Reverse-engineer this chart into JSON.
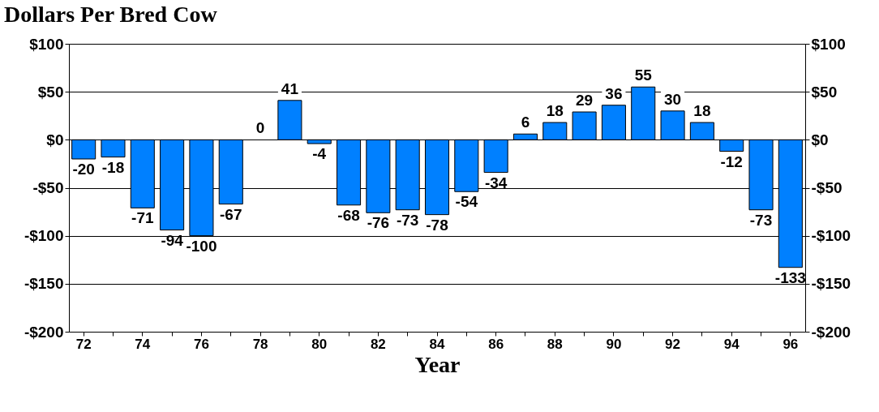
{
  "chart_data": {
    "type": "bar",
    "title": "Dollars Per Bred Cow",
    "xlabel": "Year",
    "categories": [
      "72",
      null,
      "74",
      null,
      "76",
      null,
      "78",
      null,
      "80",
      null,
      "82",
      null,
      "84",
      null,
      "86",
      null,
      "88",
      null,
      "90",
      null,
      "92",
      null,
      "94",
      null,
      "96"
    ],
    "values": [
      -20,
      -18,
      -71,
      -94,
      -100,
      -67,
      0,
      41,
      -4,
      -68,
      -76,
      -73,
      -78,
      -54,
      -34,
      6,
      18,
      29,
      36,
      55,
      30,
      18,
      -12,
      -73,
      -133
    ],
    "color": "#0080ff",
    "data_labels": true,
    "grid": "y",
    "ylim": [
      -200,
      100
    ],
    "yticks": [
      {
        "value": 100,
        "label": "$100"
      },
      {
        "value": 50,
        "label": "$50"
      },
      {
        "value": 0,
        "label": "$0"
      },
      {
        "value": -50,
        "label": "-$50"
      },
      {
        "value": -100,
        "label": "-$100"
      },
      {
        "value": -150,
        "label": "-$150"
      },
      {
        "value": -200,
        "label": "-$200"
      }
    ],
    "y2lim": [
      -200,
      100
    ],
    "y2ticks": [
      {
        "value": 100,
        "label": "$100"
      },
      {
        "value": 50,
        "label": "$50"
      },
      {
        "value": 0,
        "label": "$0"
      },
      {
        "value": -50,
        "label": "-$50"
      },
      {
        "value": -100,
        "label": "-$100"
      },
      {
        "value": -150,
        "label": "-$150"
      },
      {
        "value": -200,
        "label": "-$200"
      }
    ]
  }
}
